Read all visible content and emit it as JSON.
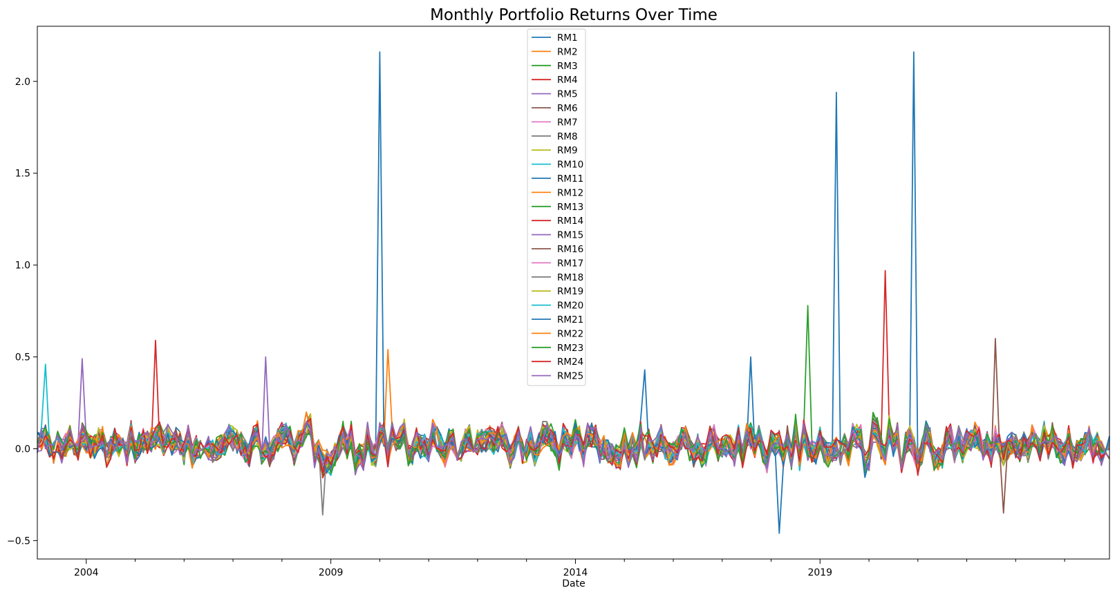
{
  "chart_data": {
    "type": "line",
    "title": "Monthly Portfolio Returns Over Time",
    "xlabel": "Date",
    "ylabel": "",
    "xlim": [
      "2003-01",
      "2024-12"
    ],
    "ylim": [
      -0.6,
      2.3
    ],
    "x_ticks": [
      "2004",
      "2009",
      "2014",
      "2019"
    ],
    "y_ticks": [
      "−0.5",
      "0.0",
      "0.5",
      "1.0",
      "1.5",
      "2.0"
    ],
    "grid": false,
    "legend_position": "upper center",
    "series": [
      {
        "name": "RM1",
        "color": "#1f77b4"
      },
      {
        "name": "RM2",
        "color": "#ff7f0e"
      },
      {
        "name": "RM3",
        "color": "#2ca02c"
      },
      {
        "name": "RM4",
        "color": "#d62728"
      },
      {
        "name": "RM5",
        "color": "#9467bd"
      },
      {
        "name": "RM6",
        "color": "#8c564b"
      },
      {
        "name": "RM7",
        "color": "#e377c2"
      },
      {
        "name": "RM8",
        "color": "#7f7f7f"
      },
      {
        "name": "RM9",
        "color": "#bcbd22"
      },
      {
        "name": "RM10",
        "color": "#17becf"
      },
      {
        "name": "RM11",
        "color": "#1f77b4"
      },
      {
        "name": "RM12",
        "color": "#ff7f0e"
      },
      {
        "name": "RM13",
        "color": "#2ca02c"
      },
      {
        "name": "RM14",
        "color": "#d62728"
      },
      {
        "name": "RM15",
        "color": "#9467bd"
      },
      {
        "name": "RM16",
        "color": "#8c564b"
      },
      {
        "name": "RM17",
        "color": "#e377c2"
      },
      {
        "name": "RM18",
        "color": "#7f7f7f"
      },
      {
        "name": "RM19",
        "color": "#bcbd22"
      },
      {
        "name": "RM20",
        "color": "#17becf"
      },
      {
        "name": "RM21",
        "color": "#1f77b4"
      },
      {
        "name": "RM22",
        "color": "#ff7f0e"
      },
      {
        "name": "RM23",
        "color": "#2ca02c"
      },
      {
        "name": "RM24",
        "color": "#d62728"
      },
      {
        "name": "RM25",
        "color": "#9467bd"
      }
    ],
    "notable_peaks": [
      {
        "series": "RM1",
        "date": "2010-01",
        "value": 2.16
      },
      {
        "series": "RM1",
        "date": "2019-05",
        "value": 1.94
      },
      {
        "series": "RM1",
        "date": "2020-12",
        "value": 2.16
      },
      {
        "series": "RM4",
        "date": "2020-05",
        "value": 0.97
      },
      {
        "series": "RM3",
        "date": "2018-10",
        "value": 0.78
      },
      {
        "series": "RM4",
        "date": "2005-06",
        "value": 0.59
      },
      {
        "series": "RM12",
        "date": "2010-03",
        "value": 0.54
      },
      {
        "series": "RM5",
        "date": "2003-12",
        "value": 0.49
      },
      {
        "series": "RM5",
        "date": "2007-09",
        "value": 0.5
      },
      {
        "series": "RM1",
        "date": "2017-08",
        "value": 0.5
      },
      {
        "series": "RM10",
        "date": "2003-03",
        "value": 0.46
      },
      {
        "series": "RM1",
        "date": "2015-06",
        "value": 0.43
      },
      {
        "series": "RM16",
        "date": "2022-08",
        "value": 0.6
      },
      {
        "series": "RM1",
        "date": "2018-03",
        "value": -0.46
      },
      {
        "series": "RM16",
        "date": "2022-10",
        "value": -0.35
      },
      {
        "series": "RM8",
        "date": "2008-11",
        "value": -0.36
      }
    ]
  }
}
